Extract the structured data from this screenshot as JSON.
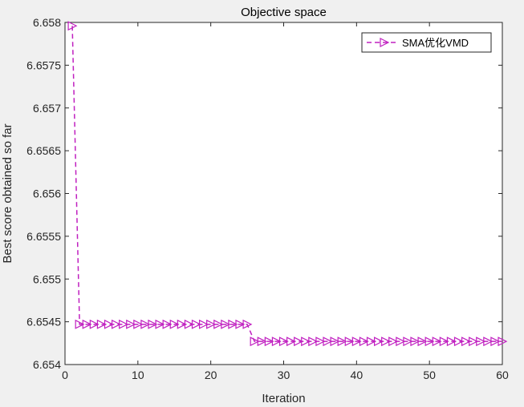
{
  "chart_data": {
    "type": "line",
    "title": "Objective space",
    "xlabel": "Iteration",
    "ylabel": "Best score obtained so far",
    "xlim": [
      0,
      60
    ],
    "ylim": [
      6.654,
      6.658
    ],
    "xticks": [
      0,
      10,
      20,
      30,
      40,
      50,
      60
    ],
    "xtick_labels": [
      "0",
      "10",
      "20",
      "30",
      "40",
      "50",
      "60"
    ],
    "yticks": [
      6.654,
      6.6545,
      6.655,
      6.6555,
      6.656,
      6.6565,
      6.657,
      6.6575,
      6.658
    ],
    "ytick_labels": [
      "6.654",
      "6.6545",
      "6.655",
      "6.6555",
      "6.656",
      "6.6565",
      "6.657",
      "6.6575",
      "6.658"
    ],
    "grid": false,
    "legend_position": "top-right",
    "series": [
      {
        "name": "SMA优化VMD",
        "color": "#c020c0",
        "line_style": "dashed",
        "marker": "right-triangle",
        "x": [
          1,
          2,
          3,
          4,
          5,
          6,
          7,
          8,
          9,
          10,
          11,
          12,
          13,
          14,
          15,
          16,
          17,
          18,
          19,
          20,
          21,
          22,
          23,
          24,
          25,
          26,
          27,
          28,
          29,
          30,
          31,
          32,
          33,
          34,
          35,
          36,
          37,
          38,
          39,
          40,
          41,
          42,
          43,
          44,
          45,
          46,
          47,
          48,
          49,
          50,
          51,
          52,
          53,
          54,
          55,
          56,
          57,
          58,
          59,
          60
        ],
        "values": [
          6.65796,
          6.65447,
          6.65447,
          6.65447,
          6.65447,
          6.65447,
          6.65447,
          6.65447,
          6.65447,
          6.65447,
          6.65447,
          6.65447,
          6.65447,
          6.65447,
          6.65447,
          6.65447,
          6.65447,
          6.65447,
          6.65447,
          6.65447,
          6.65447,
          6.65447,
          6.65447,
          6.65447,
          6.65447,
          6.65427,
          6.65427,
          6.65427,
          6.65427,
          6.65427,
          6.65427,
          6.65427,
          6.65427,
          6.65427,
          6.65427,
          6.65427,
          6.65427,
          6.65427,
          6.65427,
          6.65427,
          6.65427,
          6.65427,
          6.65427,
          6.65427,
          6.65427,
          6.65427,
          6.65427,
          6.65427,
          6.65427,
          6.65427,
          6.65427,
          6.65427,
          6.65427,
          6.65427,
          6.65427,
          6.65427,
          6.65427,
          6.65427,
          6.65427,
          6.65427
        ]
      }
    ]
  }
}
